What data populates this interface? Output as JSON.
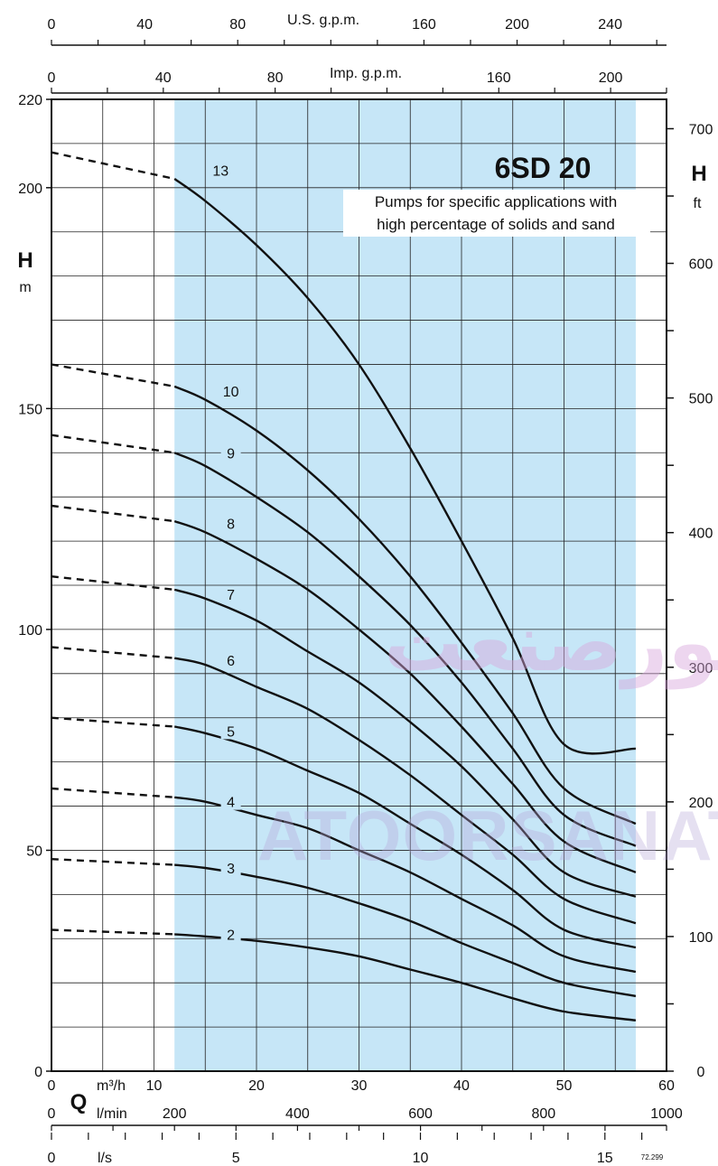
{
  "chart_data": {
    "type": "line",
    "title": "6SD 20",
    "subtitle": "Pumps for specific applications with high percentage of solids and sand",
    "subtitle_lines": [
      "Pumps for specific applications with",
      "high percentage of solids and sand"
    ],
    "y_left": {
      "label": "H",
      "unit": "m",
      "range": [
        0,
        220
      ],
      "ticks": [
        0,
        50,
        100,
        150,
        200,
        220
      ]
    },
    "y_right": {
      "label": "H",
      "unit": "ft",
      "range": [
        0,
        721.8
      ],
      "ticks": [
        0,
        100,
        200,
        300,
        400,
        500,
        600,
        700
      ]
    },
    "x_m3h": {
      "unit": "m³/h",
      "label": "Q",
      "range": [
        0,
        60
      ],
      "ticks": [
        0,
        10,
        20,
        30,
        40,
        50,
        60
      ]
    },
    "x_lmin": {
      "unit": "l/min",
      "range": [
        0,
        1000
      ],
      "ticks": [
        0,
        200,
        400,
        600,
        800,
        1000
      ]
    },
    "x_ls": {
      "unit": "l/s",
      "range": [
        0,
        16.67
      ],
      "ticks": [
        0,
        5,
        10,
        15
      ]
    },
    "x_usgpm": {
      "label": "U.S. g.p.m.",
      "range": [
        0,
        264.2
      ],
      "ticks": [
        0,
        40,
        80,
        160,
        200,
        240
      ]
    },
    "x_impgpm": {
      "label": "Imp. g.p.m.",
      "range": [
        0,
        220
      ],
      "ticks": [
        0,
        40,
        80,
        160,
        200
      ]
    },
    "operating_range_m3h": [
      12,
      57
    ],
    "grid": true,
    "fill_color": "#c6e6f7",
    "series": [
      {
        "name": "13",
        "x": [
          0,
          12,
          15,
          20,
          25,
          30,
          35,
          40,
          45,
          50,
          57
        ],
        "y": [
          208,
          202,
          197,
          187,
          175,
          160,
          141,
          120,
          98,
          74,
          73
        ]
      },
      {
        "name": "10",
        "x": [
          0,
          12,
          15,
          20,
          25,
          30,
          35,
          40,
          45,
          50,
          57
        ],
        "y": [
          160,
          155,
          152,
          145,
          136,
          125,
          112,
          97,
          81,
          64,
          56
        ]
      },
      {
        "name": "9",
        "x": [
          0,
          12,
          15,
          20,
          25,
          30,
          35,
          40,
          45,
          50,
          57
        ],
        "y": [
          144,
          140,
          137,
          130,
          122,
          112,
          101,
          88,
          73,
          58,
          51
        ]
      },
      {
        "name": "8",
        "x": [
          0,
          12,
          15,
          20,
          25,
          30,
          35,
          40,
          45,
          50,
          57
        ],
        "y": [
          128,
          124.5,
          122,
          116,
          109,
          100,
          90,
          78,
          65,
          52,
          45
        ]
      },
      {
        "name": "7",
        "x": [
          0,
          12,
          15,
          20,
          25,
          30,
          35,
          40,
          45,
          50,
          57
        ],
        "y": [
          112,
          109,
          107,
          102,
          95,
          88,
          79,
          69,
          57,
          45,
          39.5
        ]
      },
      {
        "name": "6",
        "x": [
          0,
          12,
          15,
          20,
          25,
          30,
          35,
          40,
          45,
          50,
          57
        ],
        "y": [
          96,
          93.5,
          92,
          87,
          82,
          75,
          67,
          58,
          49,
          39,
          33.5
        ]
      },
      {
        "name": "5",
        "x": [
          0,
          12,
          15,
          20,
          25,
          30,
          35,
          40,
          45,
          50,
          57
        ],
        "y": [
          80,
          78,
          76.5,
          73,
          68,
          63,
          56,
          49,
          41,
          32,
          28
        ]
      },
      {
        "name": "4",
        "x": [
          0,
          12,
          15,
          20,
          25,
          30,
          35,
          40,
          45,
          50,
          57
        ],
        "y": [
          64,
          62,
          61,
          58,
          55,
          50,
          45,
          39,
          33,
          26,
          22.5
        ]
      },
      {
        "name": "3",
        "x": [
          0,
          12,
          15,
          20,
          25,
          30,
          35,
          40,
          45,
          50,
          57
        ],
        "y": [
          48,
          46.7,
          46,
          44,
          41.5,
          38,
          34,
          29,
          24.5,
          20,
          17
        ]
      },
      {
        "name": "2",
        "x": [
          0,
          12,
          15,
          20,
          25,
          30,
          35,
          40,
          45,
          50,
          57
        ],
        "y": [
          32,
          31,
          30.5,
          29.5,
          28,
          26,
          23,
          20,
          16.5,
          13.5,
          11.5
        ]
      }
    ],
    "label_positions_m3h": {
      "13": [
        16.5,
        204
      ],
      "10": [
        17.5,
        154
      ],
      "9": [
        17.5,
        140
      ],
      "8": [
        17.5,
        124
      ],
      "7": [
        17.5,
        108
      ],
      "6": [
        17.5,
        93
      ],
      "5": [
        17.5,
        77
      ],
      "4": [
        17.5,
        61
      ],
      "3": [
        17.5,
        46
      ],
      "2": [
        17.5,
        31
      ]
    }
  },
  "watermark": {
    "arabic": "آتورصنعت",
    "latin": "ATOORSANAT"
  },
  "figure_code": "72.299"
}
